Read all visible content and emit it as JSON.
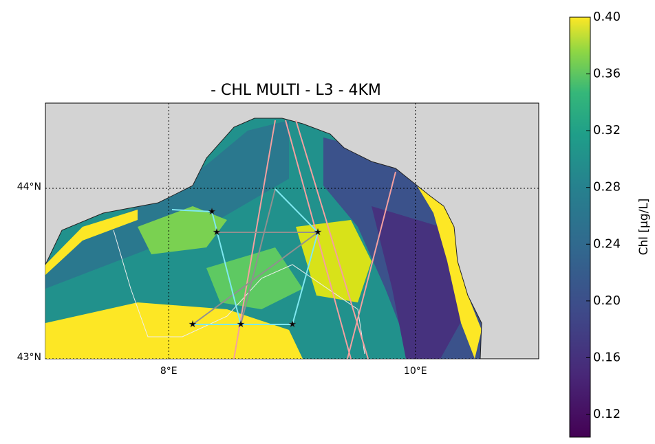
{
  "chart_data": {
    "type": "map",
    "title": "- CHL MULTI - L3 - 4KM",
    "xlim": [
      7,
      11
    ],
    "ylim": [
      43,
      44.5
    ],
    "xticks": [
      {
        "value": 8,
        "label": "8°E"
      },
      {
        "value": 10,
        "label": "10°E"
      }
    ],
    "yticks": [
      {
        "value": 43,
        "label": "43°N"
      },
      {
        "value": 44,
        "label": "44°N"
      }
    ],
    "grid": true,
    "colorbar": {
      "label": "Chl [μg/L]",
      "lim": [
        0.104,
        0.4
      ],
      "ticks": [
        0.12,
        0.16,
        {
          "value": 0.2,
          "label": "0.20"
        },
        0.24,
        0.28,
        0.32,
        0.36,
        {
          "value": 0.4,
          "label": "0.40"
        }
      ]
    }
  }
}
